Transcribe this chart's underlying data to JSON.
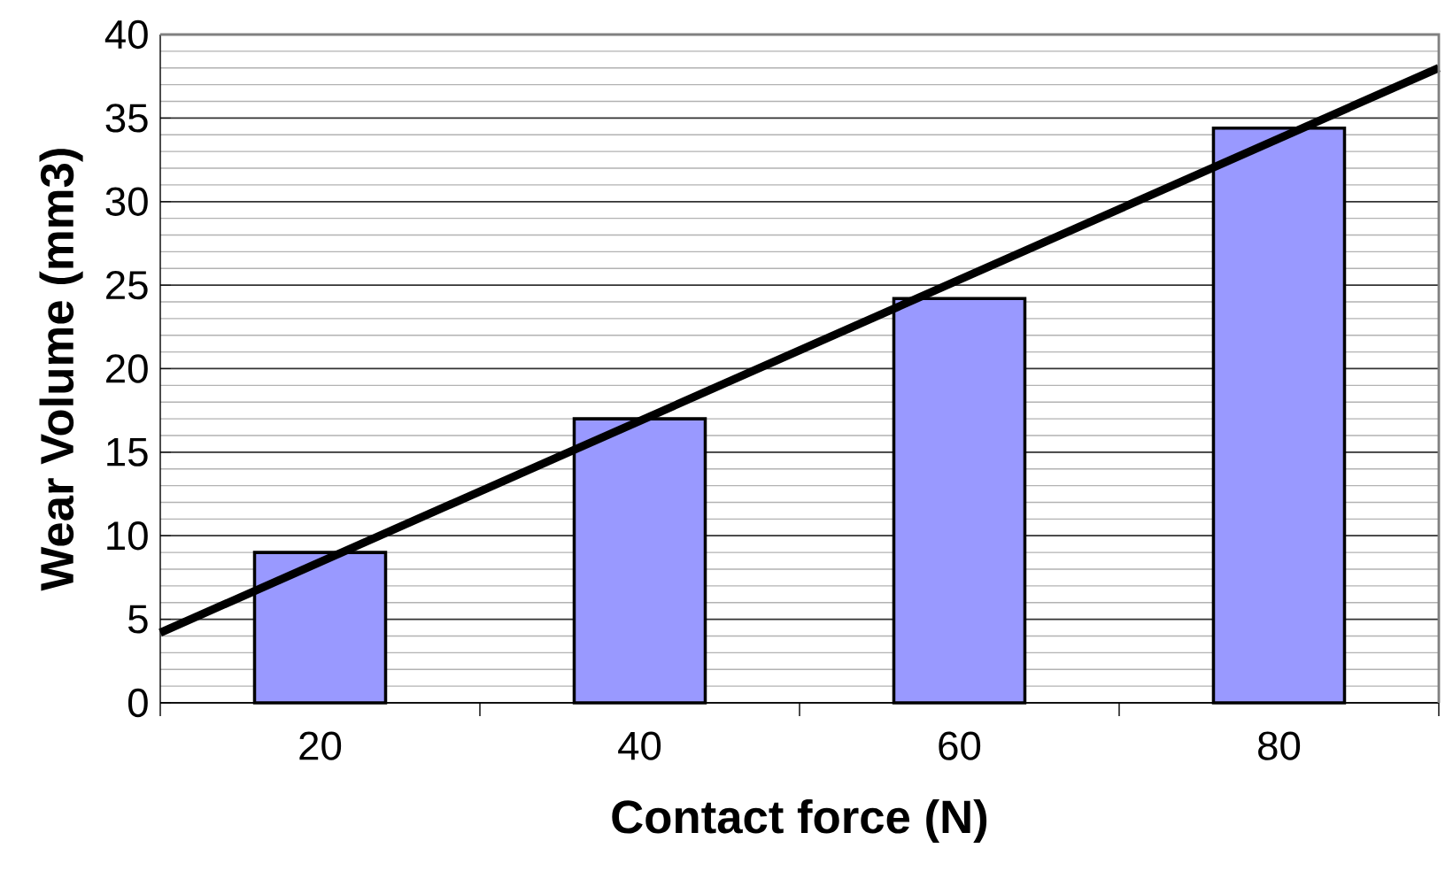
{
  "chart_data": {
    "type": "bar",
    "xlabel": "Contact force (N)",
    "ylabel": "Wear Volume (mm3)",
    "x": [
      20,
      40,
      60,
      80
    ],
    "xlim": [
      10,
      90
    ],
    "xticks": [
      20,
      40,
      60,
      80
    ],
    "ylim": [
      0,
      40
    ],
    "yticks": [
      0,
      5,
      10,
      15,
      20,
      25,
      30,
      35,
      40
    ],
    "grid": "y",
    "series": [
      {
        "color": "#9999ff",
        "values": [
          9,
          17,
          24.2,
          34.4
        ]
      },
      {
        "type": "line",
        "color": "#000000",
        "x": [
          10,
          90
        ],
        "values": [
          4.2,
          38
        ]
      }
    ]
  }
}
